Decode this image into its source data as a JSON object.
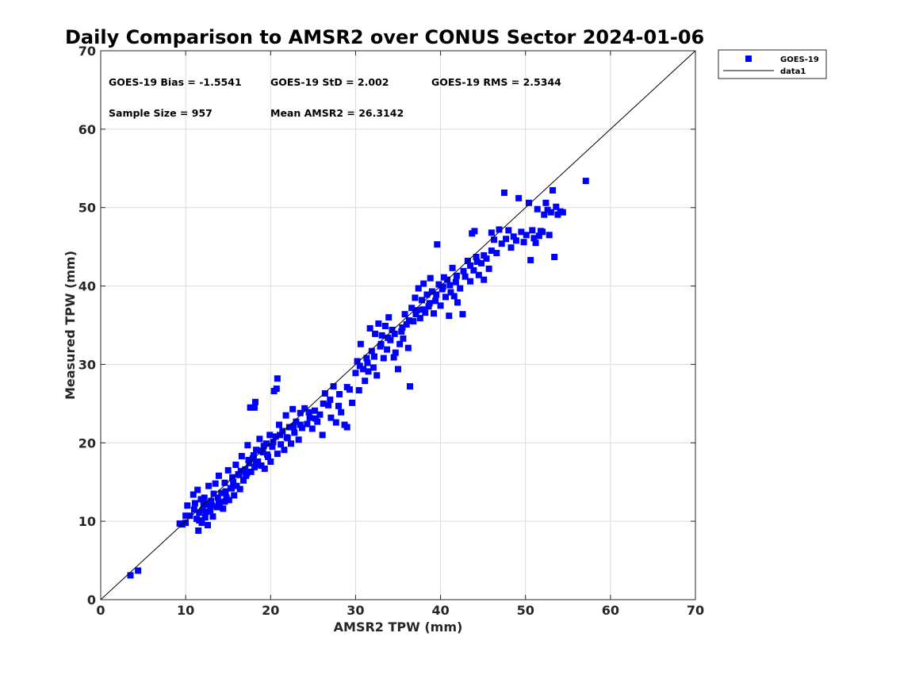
{
  "chart_data": {
    "type": "scatter",
    "title": "Daily Comparison to AMSR2 over CONUS Sector 2024-01-06",
    "xlabel": "AMSR2 TPW (mm)",
    "ylabel": "Measured TPW (mm)",
    "xlim": [
      0,
      70
    ],
    "ylim": [
      0,
      70
    ],
    "xticks": [
      "0",
      "10",
      "20",
      "30",
      "40",
      "50",
      "60",
      "70"
    ],
    "yticks": [
      "0",
      "10",
      "20",
      "30",
      "40",
      "50",
      "60",
      "70"
    ],
    "grid": true,
    "legend_position": "outside top-right",
    "stats": [
      "GOES-19 Bias = -1.5541",
      "GOES-19 StD = 2.002",
      "GOES-19 RMS = 2.5344",
      "Sample Size = 957",
      "Mean AMSR2 = 26.3142"
    ],
    "series": [
      {
        "name": "GOES-19",
        "marker": "square",
        "color": "#0000ff",
        "points": [
          [
            3.5,
            3.1
          ],
          [
            4.4,
            3.7
          ],
          [
            9.3,
            9.7
          ],
          [
            9.6,
            9.6
          ],
          [
            10.0,
            9.8
          ],
          [
            10.0,
            10.7
          ],
          [
            10.2,
            12.0
          ],
          [
            10.5,
            10.7
          ],
          [
            10.9,
            13.4
          ],
          [
            11.0,
            11.5
          ],
          [
            11.1,
            12.3
          ],
          [
            11.3,
            10.3
          ],
          [
            11.4,
            14.0
          ],
          [
            11.5,
            8.8
          ],
          [
            11.6,
            11.1
          ],
          [
            11.8,
            12.8
          ],
          [
            11.9,
            9.8
          ],
          [
            12.0,
            11.4
          ],
          [
            12.2,
            13.0
          ],
          [
            12.3,
            10.5
          ],
          [
            12.5,
            12.1
          ],
          [
            12.6,
            9.5
          ],
          [
            12.7,
            14.5
          ],
          [
            12.9,
            11.3
          ],
          [
            13.0,
            12.6
          ],
          [
            13.2,
            10.6
          ],
          [
            13.3,
            13.5
          ],
          [
            13.5,
            14.8
          ],
          [
            13.7,
            11.8
          ],
          [
            13.9,
            15.8
          ],
          [
            14.0,
            12.4
          ],
          [
            14.2,
            13.6
          ],
          [
            14.4,
            11.6
          ],
          [
            14.6,
            14.9
          ],
          [
            14.8,
            13.0
          ],
          [
            15.0,
            16.5
          ],
          [
            15.1,
            12.7
          ],
          [
            15.3,
            14.2
          ],
          [
            15.5,
            15.6
          ],
          [
            15.7,
            13.3
          ],
          [
            15.9,
            17.2
          ],
          [
            16.0,
            14.5
          ],
          [
            16.2,
            16.0
          ],
          [
            16.4,
            14.1
          ],
          [
            16.6,
            18.3
          ],
          [
            16.8,
            15.2
          ],
          [
            17.0,
            16.6
          ],
          [
            17.1,
            15.8
          ],
          [
            17.3,
            19.7
          ],
          [
            17.5,
            17.4
          ],
          [
            17.6,
            24.5
          ],
          [
            18.1,
            24.5
          ],
          [
            18.2,
            25.2
          ],
          [
            17.7,
            16.3
          ],
          [
            17.9,
            18.0
          ],
          [
            18.1,
            16.9
          ],
          [
            18.3,
            19.1
          ],
          [
            18.5,
            17.6
          ],
          [
            18.7,
            20.5
          ],
          [
            18.9,
            17.1
          ],
          [
            19.1,
            18.8
          ],
          [
            19.3,
            16.7
          ],
          [
            19.5,
            19.9
          ],
          [
            19.7,
            18.2
          ],
          [
            19.9,
            21.0
          ],
          [
            20.0,
            17.6
          ],
          [
            20.2,
            19.5
          ],
          [
            20.4,
            26.6
          ],
          [
            20.7,
            26.9
          ],
          [
            20.8,
            28.2
          ],
          [
            20.6,
            20.8
          ],
          [
            20.8,
            18.6
          ],
          [
            21.0,
            22.3
          ],
          [
            21.2,
            19.8
          ],
          [
            21.4,
            21.5
          ],
          [
            21.6,
            19.1
          ],
          [
            21.8,
            23.5
          ],
          [
            22.0,
            20.6
          ],
          [
            22.2,
            22.0
          ],
          [
            22.4,
            19.9
          ],
          [
            22.6,
            24.3
          ],
          [
            22.8,
            21.3
          ],
          [
            23.0,
            22.7
          ],
          [
            23.3,
            20.4
          ],
          [
            23.5,
            23.8
          ],
          [
            23.7,
            21.9
          ],
          [
            24.0,
            24.4
          ],
          [
            24.3,
            22.4
          ],
          [
            24.6,
            23.2
          ],
          [
            24.9,
            21.8
          ],
          [
            25.2,
            24.1
          ],
          [
            25.5,
            22.7
          ],
          [
            25.8,
            23.6
          ],
          [
            26.1,
            21.0
          ],
          [
            26.4,
            26.3
          ],
          [
            26.8,
            24.8
          ],
          [
            27.1,
            23.2
          ],
          [
            27.4,
            27.2
          ],
          [
            27.7,
            22.6
          ],
          [
            28.0,
            24.7
          ],
          [
            28.3,
            23.9
          ],
          [
            28.7,
            22.3
          ],
          [
            29.0,
            22.0
          ],
          [
            29.3,
            26.8
          ],
          [
            29.6,
            25.1
          ],
          [
            30.0,
            28.9
          ],
          [
            30.2,
            30.4
          ],
          [
            30.4,
            26.7
          ],
          [
            30.6,
            32.6
          ],
          [
            30.9,
            29.4
          ],
          [
            31.1,
            27.9
          ],
          [
            31.3,
            30.8
          ],
          [
            31.5,
            29.1
          ],
          [
            31.7,
            34.6
          ],
          [
            31.9,
            31.7
          ],
          [
            32.1,
            29.6
          ],
          [
            32.3,
            33.9
          ],
          [
            32.5,
            28.6
          ],
          [
            32.7,
            35.2
          ],
          [
            32.9,
            32.3
          ],
          [
            33.1,
            33.7
          ],
          [
            33.3,
            30.8
          ],
          [
            33.5,
            34.9
          ],
          [
            33.7,
            31.9
          ],
          [
            33.9,
            36.0
          ],
          [
            34.1,
            33.1
          ],
          [
            34.3,
            34.4
          ],
          [
            34.5,
            30.9
          ],
          [
            34.7,
            31.5
          ],
          [
            35.0,
            29.4
          ],
          [
            35.2,
            32.6
          ],
          [
            35.4,
            34.2
          ],
          [
            35.6,
            33.3
          ],
          [
            35.8,
            36.4
          ],
          [
            36.0,
            35.1
          ],
          [
            36.2,
            32.1
          ],
          [
            36.4,
            27.2
          ],
          [
            36.6,
            37.2
          ],
          [
            36.8,
            35.5
          ],
          [
            37.0,
            38.5
          ],
          [
            37.2,
            36.9
          ],
          [
            37.4,
            39.7
          ],
          [
            37.6,
            35.9
          ],
          [
            37.8,
            38.2
          ],
          [
            38.0,
            40.3
          ],
          [
            38.2,
            36.6
          ],
          [
            38.4,
            38.9
          ],
          [
            38.6,
            37.4
          ],
          [
            38.8,
            41.0
          ],
          [
            39.0,
            39.3
          ],
          [
            39.2,
            36.5
          ],
          [
            39.4,
            38.1
          ],
          [
            39.6,
            45.3
          ],
          [
            39.8,
            40.2
          ],
          [
            40.0,
            37.5
          ],
          [
            40.2,
            39.6
          ],
          [
            40.4,
            41.1
          ],
          [
            40.6,
            38.6
          ],
          [
            40.8,
            40.8
          ],
          [
            41.0,
            36.2
          ],
          [
            41.2,
            39.2
          ],
          [
            41.4,
            42.3
          ],
          [
            41.6,
            38.7
          ],
          [
            41.8,
            40.5
          ],
          [
            42.0,
            37.9
          ],
          [
            42.3,
            39.7
          ],
          [
            42.6,
            36.4
          ],
          [
            42.9,
            41.2
          ],
          [
            43.2,
            43.2
          ],
          [
            43.5,
            40.6
          ],
          [
            43.7,
            46.7
          ],
          [
            44.0,
            47.0
          ],
          [
            43.9,
            42.0
          ],
          [
            44.2,
            43.7
          ],
          [
            44.5,
            41.4
          ],
          [
            44.8,
            42.9
          ],
          [
            45.1,
            40.8
          ],
          [
            45.4,
            43.5
          ],
          [
            45.7,
            42.2
          ],
          [
            46.0,
            46.8
          ],
          [
            46.3,
            45.9
          ],
          [
            46.6,
            44.2
          ],
          [
            46.9,
            47.2
          ],
          [
            47.2,
            45.4
          ],
          [
            47.5,
            51.9
          ],
          [
            47.7,
            46.0
          ],
          [
            48.0,
            47.1
          ],
          [
            48.3,
            44.9
          ],
          [
            48.6,
            46.3
          ],
          [
            48.9,
            45.8
          ],
          [
            49.2,
            51.2
          ],
          [
            49.5,
            46.9
          ],
          [
            49.8,
            45.6
          ],
          [
            50.1,
            46.5
          ],
          [
            50.4,
            50.6
          ],
          [
            50.6,
            43.3
          ],
          [
            50.8,
            47.1
          ],
          [
            51.0,
            46.1
          ],
          [
            51.2,
            45.5
          ],
          [
            51.4,
            49.8
          ],
          [
            51.6,
            46.4
          ],
          [
            51.8,
            47.0
          ],
          [
            52.0,
            46.9
          ],
          [
            52.2,
            49.1
          ],
          [
            52.4,
            50.6
          ],
          [
            52.6,
            49.7
          ],
          [
            52.8,
            46.5
          ],
          [
            53.0,
            49.4
          ],
          [
            53.2,
            52.2
          ],
          [
            53.4,
            43.7
          ],
          [
            53.6,
            50.1
          ],
          [
            53.8,
            49.1
          ],
          [
            54.1,
            49.5
          ],
          [
            54.4,
            49.4
          ],
          [
            57.1,
            53.4
          ],
          [
            12.1,
            12.2
          ],
          [
            13.8,
            13.0
          ],
          [
            14.6,
            12.5
          ],
          [
            15.4,
            14.2
          ],
          [
            16.3,
            15.9
          ],
          [
            17.2,
            16.1
          ],
          [
            18.0,
            18.4
          ],
          [
            18.8,
            19.0
          ],
          [
            19.6,
            18.5
          ],
          [
            20.3,
            20.1
          ],
          [
            21.1,
            21.0
          ],
          [
            21.9,
            20.7
          ],
          [
            22.7,
            22.1
          ],
          [
            23.5,
            22.3
          ],
          [
            24.5,
            23.9
          ],
          [
            25.3,
            23.1
          ],
          [
            26.2,
            25.0
          ],
          [
            27.0,
            25.5
          ],
          [
            28.1,
            26.2
          ],
          [
            29.0,
            27.1
          ],
          [
            30.5,
            29.8
          ],
          [
            31.4,
            30.2
          ],
          [
            32.2,
            31.0
          ],
          [
            33.0,
            32.6
          ],
          [
            33.8,
            33.4
          ],
          [
            34.6,
            33.9
          ],
          [
            35.5,
            34.7
          ],
          [
            36.3,
            35.6
          ],
          [
            37.1,
            36.4
          ],
          [
            37.9,
            37.0
          ],
          [
            38.7,
            37.8
          ],
          [
            39.5,
            38.9
          ],
          [
            40.3,
            39.9
          ],
          [
            41.1,
            40.1
          ],
          [
            41.9,
            41.3
          ],
          [
            42.7,
            41.9
          ],
          [
            43.5,
            42.6
          ],
          [
            44.3,
            43.1
          ],
          [
            45.1,
            43.9
          ],
          [
            46.0,
            44.5
          ],
          [
            11.6,
            10.1
          ],
          [
            12.4,
            11.2
          ],
          [
            13.1,
            12.0
          ],
          [
            13.9,
            12.2
          ],
          [
            14.7,
            13.8
          ],
          [
            15.6,
            15.0
          ],
          [
            16.5,
            16.4
          ],
          [
            17.4,
            17.8
          ],
          [
            18.3,
            17.2
          ],
          [
            19.2,
            19.6
          ]
        ]
      },
      {
        "name": "data1",
        "type": "line",
        "color": "#000000",
        "points": [
          [
            0,
            0
          ],
          [
            70,
            70
          ]
        ]
      }
    ]
  }
}
